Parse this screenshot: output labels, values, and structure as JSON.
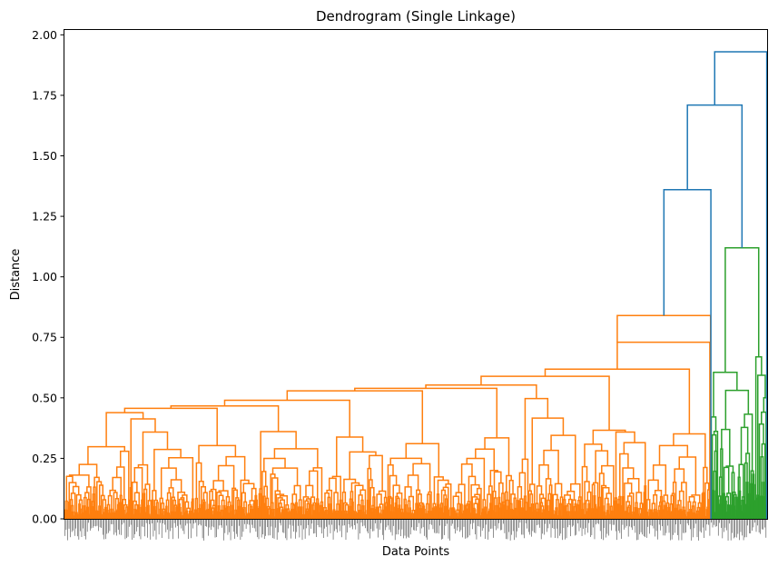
{
  "chart_data": {
    "type": "dendrogram",
    "title": "Dendrogram (Single Linkage)",
    "xlabel": "Data Points",
    "ylabel": "Distance",
    "ylim": [
      0,
      2.02
    ],
    "yticks": [
      "0.00",
      "0.25",
      "0.50",
      "0.75",
      "1.00",
      "1.25",
      "1.50",
      "1.75",
      "2.00"
    ],
    "ytick_values": [
      0,
      0.25,
      0.5,
      0.75,
      1.0,
      1.25,
      1.5,
      1.75,
      2.0
    ],
    "grid": false,
    "leaf_count": 1000,
    "colors": {
      "cluster_1": "#ff7f0e",
      "cluster_2": "#2ca02c",
      "above_threshold": "#1f77b4"
    },
    "clusters": [
      {
        "color": "cluster_1",
        "leaf_share": 0.92,
        "top_merge": 0.84,
        "notable_merges": [
          0.49,
          0.53,
          0.54,
          0.58,
          0.61,
          0.62,
          0.73,
          0.84
        ]
      },
      {
        "color": "cluster_2",
        "leaf_share": 0.08,
        "top_merge": 1.12,
        "notable_merges": [
          0.73,
          0.8,
          0.88,
          0.93,
          0.99,
          1.12
        ]
      }
    ],
    "top_merges": [
      1.36,
      1.71,
      1.93
    ]
  }
}
